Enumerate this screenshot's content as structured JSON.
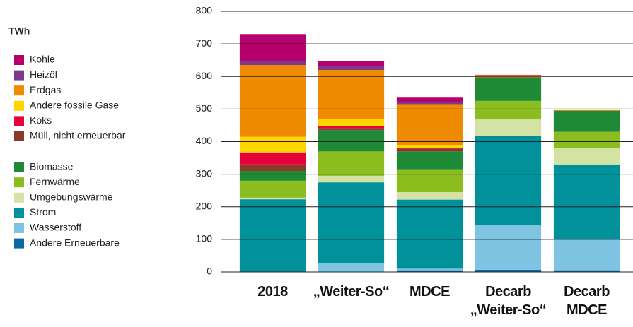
{
  "chart_data": {
    "type": "stacked_bar",
    "unit": "TWh",
    "categories": [
      "2018",
      "„Weiter-So“",
      "MDCE",
      "Decarb „Weiter-So“",
      "Decarb MDCE"
    ],
    "ylim": [
      0,
      800
    ],
    "yticks": [
      0,
      100,
      200,
      300,
      400,
      500,
      600,
      700,
      800
    ],
    "grid": true,
    "series": [
      {
        "name": "Kohle",
        "color": "#b5006e",
        "values": [
          83,
          16,
          13,
          1,
          0
        ]
      },
      {
        "name": "Heizöl",
        "color": "#7d3a8c",
        "values": [
          12,
          12,
          7,
          0,
          0
        ]
      },
      {
        "name": "Erdgas",
        "color": "#f08a00",
        "values": [
          220,
          150,
          125,
          4,
          2
        ]
      },
      {
        "name": "Andere fossile Gase",
        "color": "#ffd500",
        "values": [
          48,
          22,
          10,
          2,
          0
        ]
      },
      {
        "name": "Koks",
        "color": "#e4003a",
        "values": [
          37,
          6,
          2,
          0,
          0
        ]
      },
      {
        "name": "Müll, nicht erneuerbar",
        "color": "#8b3a2a",
        "values": [
          20,
          7,
          8,
          3,
          0
        ]
      },
      {
        "name": "Biomasse",
        "color": "#1e8a36",
        "values": [
          30,
          65,
          55,
          70,
          65
        ]
      },
      {
        "name": "Fernwärme",
        "color": "#8cbd1f",
        "values": [
          52,
          75,
          70,
          57,
          50
        ]
      },
      {
        "name": "Umgebungswärme",
        "color": "#d4e3a4",
        "values": [
          5,
          20,
          23,
          50,
          50
        ]
      },
      {
        "name": "Strom",
        "color": "#00919a",
        "values": [
          223,
          247,
          212,
          273,
          230
        ]
      },
      {
        "name": "Wasserstoff",
        "color": "#7fc4e3",
        "values": [
          0,
          28,
          7,
          140,
          97
        ]
      },
      {
        "name": "Andere Erneuerbare",
        "color": "#0a67a3",
        "values": [
          0,
          0,
          3,
          5,
          3
        ]
      }
    ]
  }
}
